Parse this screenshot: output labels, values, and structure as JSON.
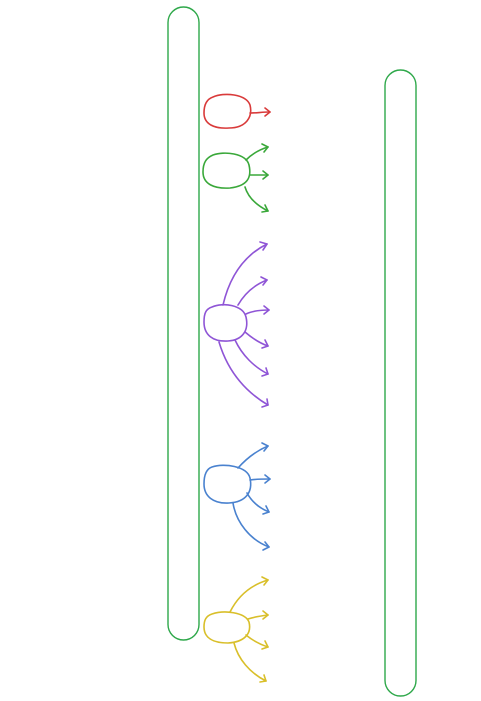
{
  "colors": {
    "background": "#ffffff",
    "column_stroke": "#2ea84a"
  },
  "columns": [
    {
      "name": "left-column"
    },
    {
      "name": "right-column"
    }
  ],
  "nodes": [
    {
      "name": "red-node",
      "color": "#d93a3a",
      "arrows": 1
    },
    {
      "name": "green-node",
      "color": "#3aa83a",
      "arrows": 3
    },
    {
      "name": "purple-node",
      "color": "#8f55d6",
      "arrows": 6
    },
    {
      "name": "blue-node",
      "color": "#4a82cf",
      "arrows": 4
    },
    {
      "name": "yellow-node",
      "color": "#d9bf2a",
      "arrows": 4
    }
  ]
}
